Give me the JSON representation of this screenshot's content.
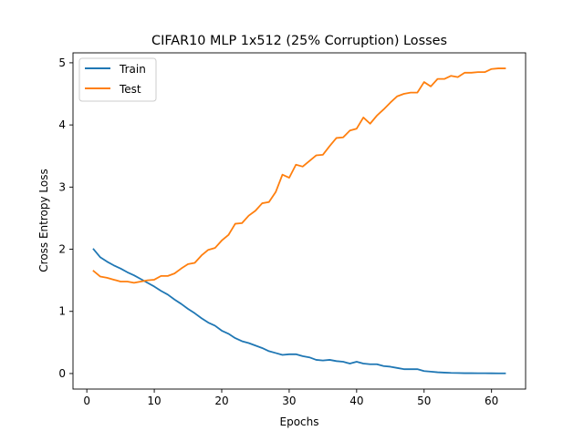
{
  "chart_data": {
    "type": "line",
    "title": "CIFAR10 MLP 1x512 (25% Corruption) Losses",
    "xlabel": "Epochs",
    "ylabel": "Cross Entropy Loss",
    "xlim": [
      -2.05,
      65.05
    ],
    "ylim": [
      -0.25,
      5.16
    ],
    "xticks": [
      0,
      10,
      20,
      30,
      40,
      50,
      60
    ],
    "yticks": [
      0,
      1,
      2,
      3,
      4,
      5
    ],
    "grid": false,
    "legend": "top-left",
    "x": [
      1,
      2,
      3,
      4,
      5,
      6,
      7,
      8,
      9,
      10,
      11,
      12,
      13,
      14,
      15,
      16,
      17,
      18,
      19,
      20,
      21,
      22,
      23,
      24,
      25,
      26,
      27,
      28,
      29,
      30,
      31,
      32,
      33,
      34,
      35,
      36,
      37,
      38,
      39,
      40,
      41,
      42,
      43,
      44,
      45,
      46,
      47,
      48,
      49,
      50,
      51,
      52,
      53,
      54,
      55,
      56,
      57,
      58,
      59,
      60,
      61,
      62
    ],
    "series": [
      {
        "name": "Train",
        "color": "#1f77b4",
        "values": [
          2.0,
          1.87,
          1.8,
          1.74,
          1.69,
          1.63,
          1.58,
          1.52,
          1.46,
          1.4,
          1.33,
          1.27,
          1.19,
          1.12,
          1.04,
          0.97,
          0.89,
          0.82,
          0.77,
          0.69,
          0.64,
          0.57,
          0.52,
          0.49,
          0.45,
          0.41,
          0.36,
          0.33,
          0.3,
          0.31,
          0.31,
          0.28,
          0.26,
          0.22,
          0.21,
          0.22,
          0.2,
          0.19,
          0.16,
          0.19,
          0.16,
          0.15,
          0.15,
          0.12,
          0.11,
          0.09,
          0.07,
          0.07,
          0.07,
          0.04,
          0.03,
          0.02,
          0.015,
          0.01,
          0.008,
          0.006,
          0.006,
          0.005,
          0.005,
          0.004,
          0.003,
          0.003
        ]
      },
      {
        "name": "Test",
        "color": "#ff7f0e",
        "values": [
          1.65,
          1.56,
          1.54,
          1.51,
          1.48,
          1.48,
          1.46,
          1.48,
          1.5,
          1.51,
          1.57,
          1.57,
          1.61,
          1.69,
          1.76,
          1.78,
          1.9,
          1.99,
          2.02,
          2.14,
          2.23,
          2.41,
          2.42,
          2.54,
          2.62,
          2.74,
          2.76,
          2.92,
          3.2,
          3.15,
          3.36,
          3.33,
          3.42,
          3.51,
          3.52,
          3.66,
          3.79,
          3.8,
          3.91,
          3.94,
          4.12,
          4.02,
          4.15,
          4.25,
          4.36,
          4.46,
          4.5,
          4.52,
          4.52,
          4.69,
          4.62,
          4.74,
          4.74,
          4.79,
          4.77,
          4.84,
          4.84,
          4.85,
          4.85,
          4.9,
          4.91,
          4.91
        ]
      }
    ]
  }
}
